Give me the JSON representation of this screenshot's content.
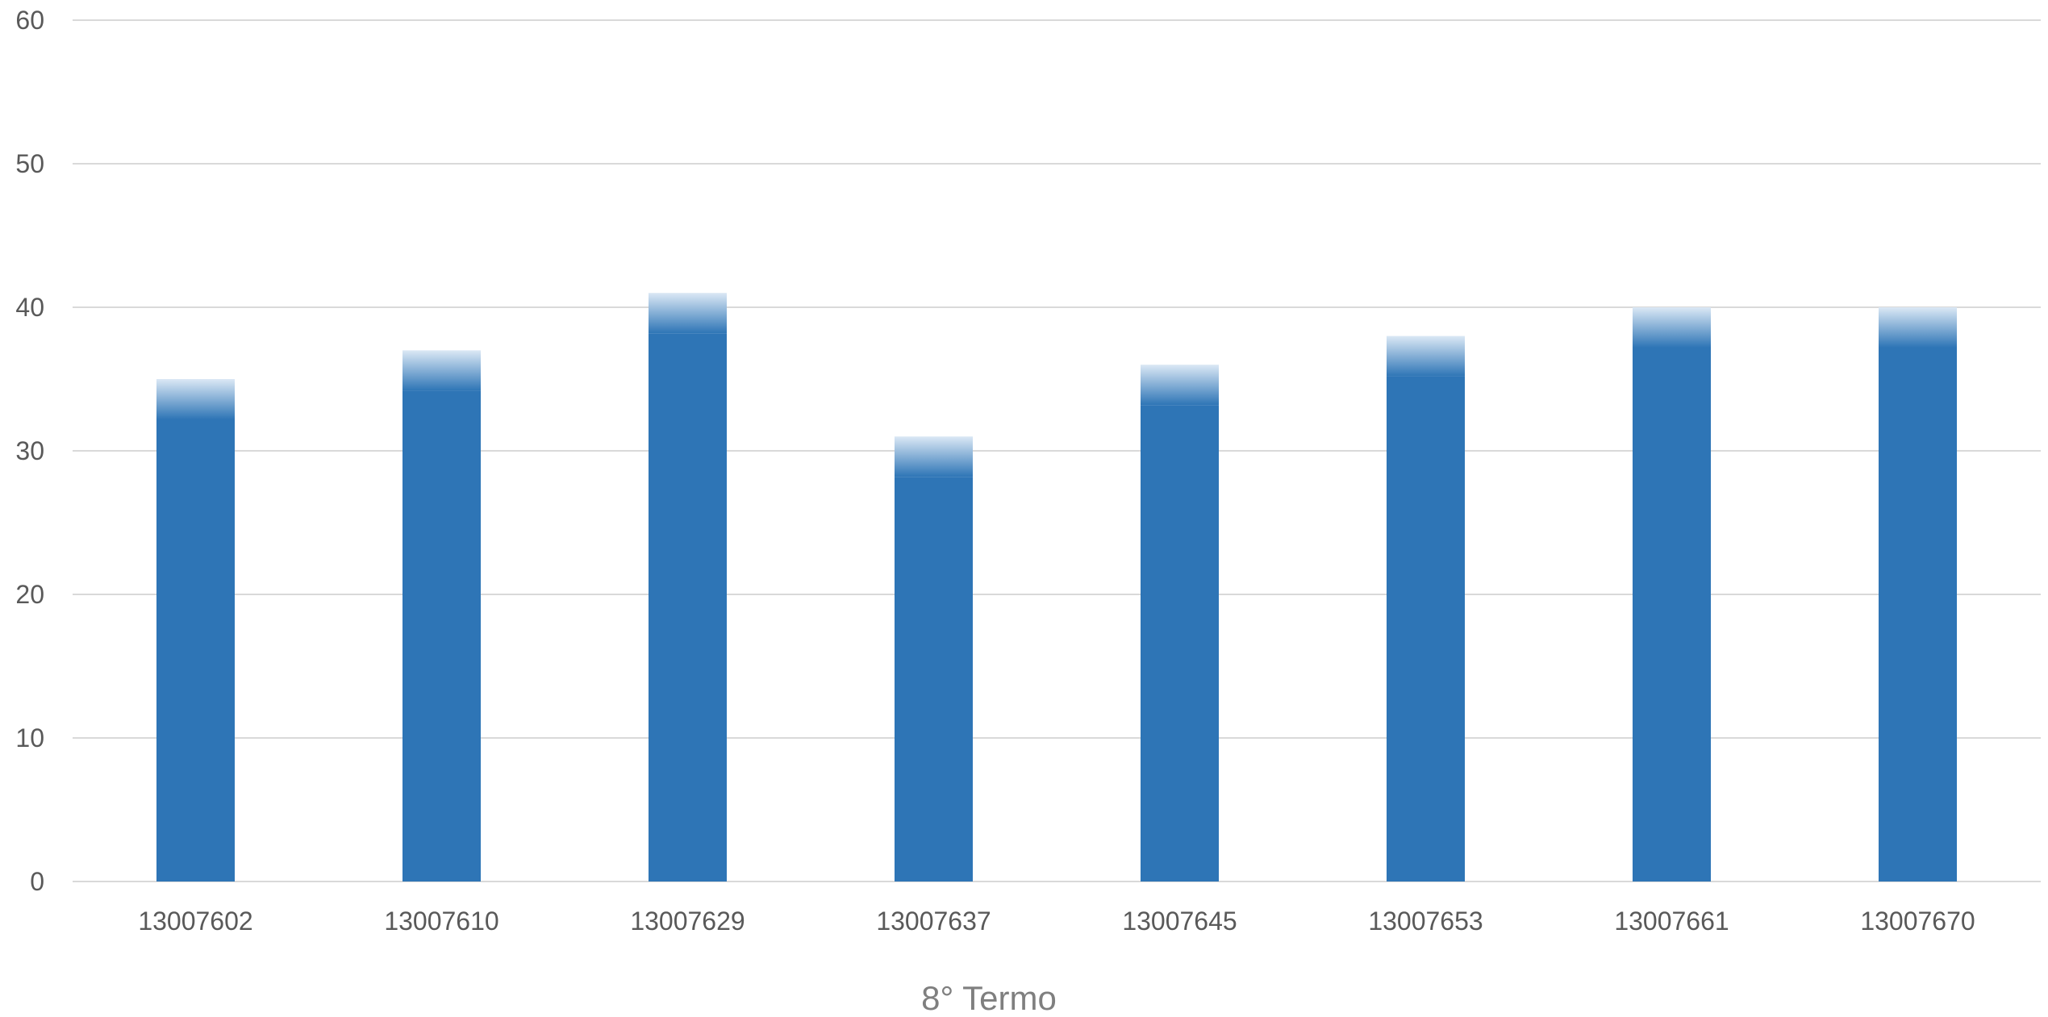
{
  "chart_data": {
    "type": "bar",
    "title": "",
    "xlabel": "8° Termo",
    "ylabel": "",
    "categories": [
      "13007602",
      "13007610",
      "13007629",
      "13007637",
      "13007645",
      "13007653",
      "13007661",
      "13007670"
    ],
    "series": [
      {
        "values": [
          35,
          37,
          41,
          31,
          36,
          38,
          40,
          40
        ]
      }
    ],
    "ylim": [
      0,
      60
    ],
    "yticks": [
      0,
      10,
      20,
      30,
      40,
      50,
      60
    ],
    "grid": true,
    "legend": "none",
    "colors": {
      "bar": "#2e75b6",
      "bar_top_fade": "#dbe8f5",
      "grid": "#d9d9d9",
      "tick_text": "#595959",
      "axis_title": "#7f7f7f"
    }
  }
}
